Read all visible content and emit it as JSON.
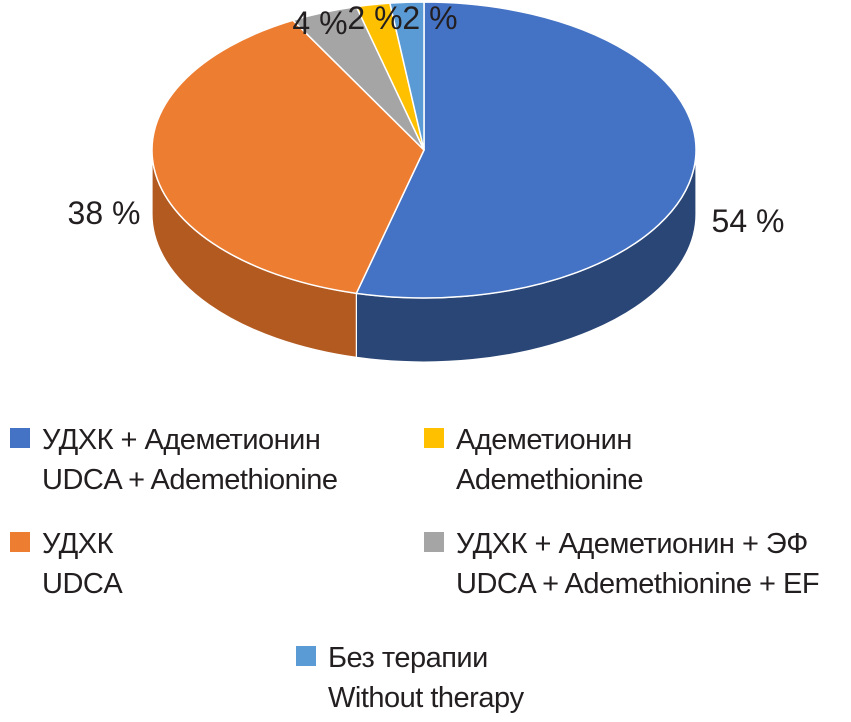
{
  "chart_data": {
    "type": "pie",
    "three_d": true,
    "slices": [
      {
        "ru": "УДХК + Адеметионин",
        "en": "UDCA + Ademethionine",
        "value": 54,
        "label": "54 %",
        "color": "#4472c4",
        "side_color": "#2a4676"
      },
      {
        "ru": "УДХК",
        "en": "UDCA",
        "value": 38,
        "label": "38 %",
        "color": "#ed7d31",
        "side_color": "#b35a20"
      },
      {
        "ru": "УДХК + Адеметионин + ЭФ",
        "en": "UDCA + Ademethionine + EF",
        "value": 4,
        "label": "4 %",
        "color": "#a5a5a5",
        "side_color": "#7a7a7a"
      },
      {
        "ru": "Адеметионин",
        "en": "Ademethionine",
        "value": 2,
        "label": "2 %",
        "color": "#ffc000",
        "side_color": "#c09000"
      },
      {
        "ru": "Без терапии",
        "en": "Without therapy",
        "value": 2,
        "label": "2 %",
        "color": "#5b9bd5",
        "side_color": "#3b6f9e"
      }
    ],
    "legend_placement": "bottom"
  },
  "legend": [
    {
      "ru": "УДХК + Адеметионин",
      "en": "UDCA + Ademethionine",
      "color": "#4472c4"
    },
    {
      "ru": "Адеметионин",
      "en": "Ademethionine",
      "color": "#ffc000"
    },
    {
      "ru": "УДХК",
      "en": "UDCA",
      "color": "#ed7d31"
    },
    {
      "ru": "УДХК + Адеметионин + ЭФ",
      "en": "UDCA + Ademethionine + EF",
      "color": "#a5a5a5"
    },
    {
      "ru": "Без терапии",
      "en": "Without therapy",
      "color": "#5b9bd5"
    }
  ]
}
